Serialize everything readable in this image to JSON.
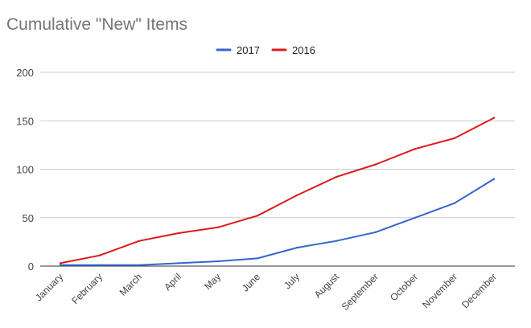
{
  "chart_data": {
    "type": "line",
    "title": "Cumulative \"New\" Items",
    "xlabel": "",
    "ylabel": "",
    "categories": [
      "January",
      "February",
      "March",
      "April",
      "May",
      "June",
      "July",
      "August",
      "September",
      "October",
      "November",
      "December"
    ],
    "ylim": [
      0,
      200
    ],
    "yticks": [
      0,
      50,
      100,
      150,
      200
    ],
    "grid": true,
    "legend_position": "top-center",
    "series": [
      {
        "name": "2017",
        "color": "#3366cc",
        "values": [
          1,
          1,
          1,
          3,
          5,
          8,
          19,
          26,
          35,
          50,
          65,
          90
        ]
      },
      {
        "name": "2016",
        "color": "#dc1a1a",
        "values": [
          3,
          11,
          26,
          34,
          40,
          52,
          73,
          92,
          105,
          121,
          132,
          153
        ]
      }
    ]
  }
}
